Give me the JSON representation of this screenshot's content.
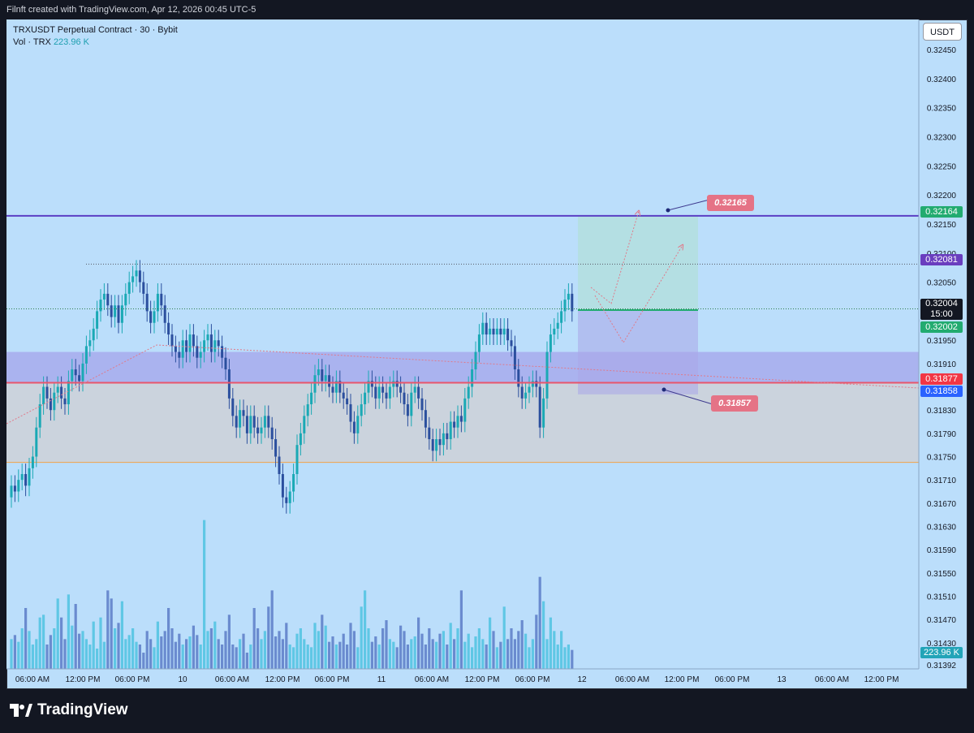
{
  "header": {
    "caption": "Filnft created with TradingView.com, Apr 12, 2026 00:45 UTC-5"
  },
  "legend": {
    "symbol_line": "TRXUSDT Perpetual Contract · 30 · Bybit",
    "vol_label": "Vol · TRX",
    "vol_value": "223.96 K"
  },
  "currency_button": "USDT",
  "brand": {
    "name": "TradingView",
    "icon": "tradingview-logo-icon"
  },
  "price_tags": {
    "resistance": "0.32164",
    "dotted_high": "0.32081",
    "last_price": "0.32004",
    "countdown": "15:00",
    "entry": "0.32002",
    "zone_top": "0.31877",
    "zone_mid": "0.31858",
    "volume": "223.96 K"
  },
  "callouts": {
    "target": "0.32165",
    "stop": "0.31857"
  },
  "colors": {
    "background": "#bbdefb",
    "bull_candle": "#1aa9b5",
    "bear_candle": "#2b4f9e",
    "vol_bull": "#4fc3e0",
    "vol_bear": "#5c7cc7",
    "resistance_line": "#5b3fc4",
    "zone_purple": "#9c8fe6",
    "zone_grey": "#cfcfd6",
    "callout": "#e57386",
    "green_tag": "#22ab70",
    "purple_tag": "#6a3ebf",
    "red_tag": "#f23645",
    "blue_tag": "#2962ff"
  },
  "chart_data": {
    "type": "candlestick",
    "symbol": "TRXUSDT Perpetual Contract",
    "interval": "30",
    "exchange": "Bybit",
    "y_ticks": [
      "0.32450",
      "0.32400",
      "0.32350",
      "0.32300",
      "0.32250",
      "0.32200",
      "0.32150",
      "0.32100",
      "0.32050",
      "0.31950",
      "0.31910",
      "0.31830",
      "0.31790",
      "0.31750",
      "0.31710",
      "0.31670",
      "0.31630",
      "0.31590",
      "0.31550",
      "0.31510",
      "0.31470",
      "0.31430",
      "0.31392"
    ],
    "x_ticks": [
      "06:00 AM",
      "12:00 PM",
      "06:00 PM",
      "10",
      "06:00 AM",
      "12:00 PM",
      "06:00 PM",
      "11",
      "06:00 AM",
      "12:00 PM",
      "06:00 PM",
      "12",
      "06:00 AM",
      "12:00 PM",
      "06:00 PM",
      "13",
      "06:00 AM",
      "12:00 PM"
    ],
    "y_range": [
      0.3138,
      0.3247
    ],
    "levels": {
      "resistance": 0.32164,
      "dotted_high": 0.32081,
      "current": 0.32004,
      "zone_top": 0.3193,
      "zone_line": 0.31877,
      "zone_bottom": 0.3174
    },
    "position": {
      "entry": 0.32002,
      "target": 0.32165,
      "stop": 0.31857
    },
    "close": [
      0.317,
      0.3169,
      0.3171,
      0.3172,
      0.317,
      0.3173,
      0.3175,
      0.318,
      0.3184,
      0.3187,
      0.3185,
      0.3183,
      0.3186,
      0.3187,
      0.3185,
      0.3184,
      0.3188,
      0.319,
      0.3189,
      0.3188,
      0.3191,
      0.3194,
      0.3195,
      0.3197,
      0.32,
      0.3202,
      0.3203,
      0.3201,
      0.3199,
      0.3201,
      0.3198,
      0.3201,
      0.3203,
      0.3205,
      0.3206,
      0.3207,
      0.3205,
      0.3203,
      0.32,
      0.3198,
      0.32,
      0.3203,
      0.3201,
      0.3198,
      0.3196,
      0.3194,
      0.3193,
      0.3192,
      0.3195,
      0.3193,
      0.3196,
      0.3194,
      0.3192,
      0.3193,
      0.3195,
      0.3196,
      0.3193,
      0.3195,
      0.3194,
      0.3192,
      0.319,
      0.3185,
      0.3182,
      0.318,
      0.3183,
      0.3182,
      0.3179,
      0.3182,
      0.318,
      0.3179,
      0.318,
      0.3182,
      0.318,
      0.3178,
      0.3175,
      0.3172,
      0.3168,
      0.3167,
      0.3169,
      0.3172,
      0.3177,
      0.3179,
      0.3182,
      0.3184,
      0.3186,
      0.3189,
      0.319,
      0.3188,
      0.3189,
      0.3187,
      0.3186,
      0.3188,
      0.3186,
      0.3185,
      0.3184,
      0.3181,
      0.3179,
      0.3182,
      0.3184,
      0.3186,
      0.3188,
      0.3187,
      0.3185,
      0.3187,
      0.3186,
      0.3185,
      0.3187,
      0.3188,
      0.3187,
      0.3186,
      0.3184,
      0.3182,
      0.3186,
      0.3187,
      0.3185,
      0.3183,
      0.318,
      0.3178,
      0.3176,
      0.3178,
      0.3177,
      0.3179,
      0.3178,
      0.3181,
      0.318,
      0.3182,
      0.3181,
      0.3185,
      0.3187,
      0.319,
      0.3193,
      0.3196,
      0.3198,
      0.3196,
      0.3197,
      0.3196,
      0.3197,
      0.3196,
      0.3197,
      0.3195,
      0.3194,
      0.319,
      0.3187,
      0.3185,
      0.3186,
      0.3187,
      0.3188,
      0.3187,
      0.318,
      0.3185,
      0.3193,
      0.3196,
      0.3197,
      0.3198,
      0.32,
      0.3202,
      0.3203,
      0.32
    ],
    "volume": [
      22,
      25,
      20,
      30,
      45,
      28,
      18,
      22,
      38,
      40,
      18,
      25,
      30,
      52,
      38,
      22,
      55,
      32,
      48,
      26,
      28,
      22,
      18,
      35,
      15,
      38,
      20,
      58,
      52,
      30,
      34,
      50,
      22,
      25,
      30,
      20,
      18,
      12,
      28,
      22,
      16,
      35,
      24,
      28,
      45,
      30,
      20,
      26,
      18,
      22,
      24,
      32,
      25,
      18,
      110,
      28,
      30,
      35,
      22,
      18,
      28,
      40,
      18,
      16,
      22,
      26,
      12,
      18,
      45,
      30,
      22,
      28,
      46,
      58,
      24,
      28,
      22,
      34,
      18,
      16,
      26,
      30,
      22,
      18,
      16,
      34,
      28,
      40,
      32,
      20,
      24,
      18,
      20,
      26,
      18,
      34,
      28,
      16,
      46,
      58,
      30,
      20,
      24,
      18,
      30,
      36,
      22,
      20,
      16,
      32,
      28,
      18,
      22,
      24,
      38,
      26,
      18,
      30,
      22,
      20,
      26,
      28,
      18,
      34,
      22,
      30,
      58,
      20,
      26,
      16,
      24,
      30,
      22,
      18,
      38,
      28,
      16,
      20,
      46,
      22,
      30,
      22,
      28,
      36,
      26,
      16,
      22,
      40,
      68,
      50,
      22,
      38,
      28,
      18,
      28,
      16,
      18,
      14
    ]
  }
}
